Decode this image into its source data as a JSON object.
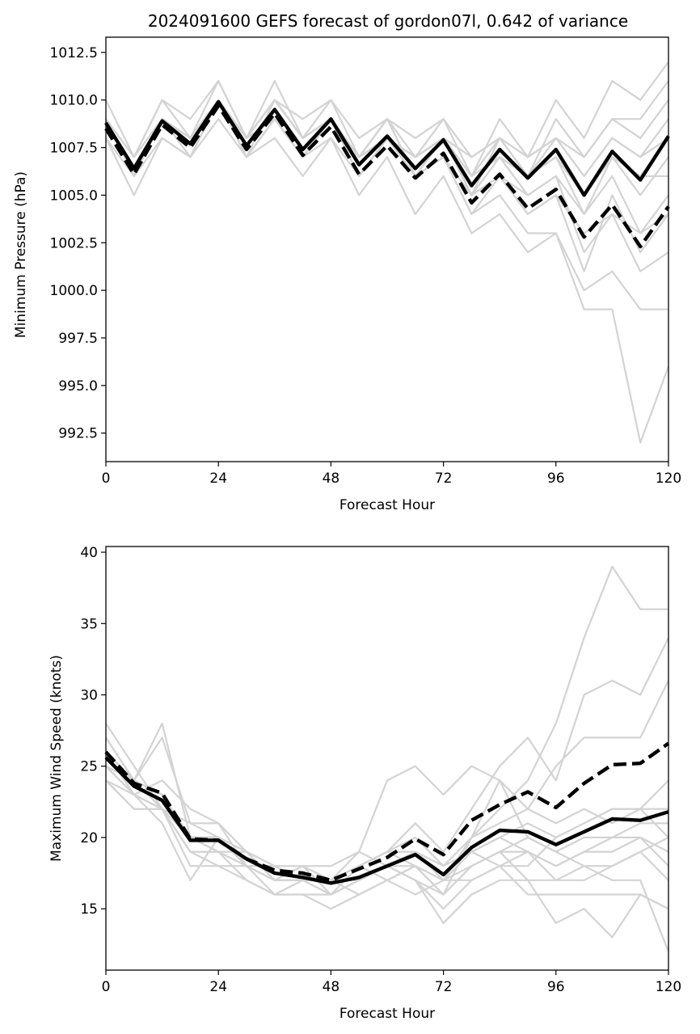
{
  "chart_data": [
    {
      "type": "line",
      "title": "2024091600 GEFS forecast of gordon07l, 0.642 of variance",
      "xlabel": "Forecast Hour",
      "ylabel": "Minimum Pressure (hPa)",
      "xlim": [
        0,
        120
      ],
      "ylim": [
        991,
        1013.3
      ],
      "xticks": [
        0,
        24,
        48,
        72,
        96,
        120
      ],
      "yticks": [
        992.5,
        995.0,
        997.5,
        1000.0,
        1002.5,
        1005.0,
        1007.5,
        1010.0,
        1012.5
      ],
      "ytick_labels": [
        "992.5",
        "995.0",
        "997.5",
        "1000.0",
        "1002.5",
        "1005.0",
        "1007.5",
        "1010.0",
        "1012.5"
      ],
      "grid": false,
      "x": [
        0,
        6,
        12,
        18,
        24,
        30,
        36,
        42,
        48,
        54,
        60,
        66,
        72,
        78,
        84,
        90,
        96,
        102,
        108,
        114,
        120
      ],
      "colors": {
        "members": "#d3d3d3",
        "mean": "#000000"
      },
      "members": [
        [
          1009,
          1006,
          1009,
          1008,
          1010,
          1007,
          1010,
          1008,
          1009,
          1007,
          1008,
          1007,
          1008,
          1006,
          1007,
          1006,
          1007,
          1005,
          1007,
          1006,
          1008
        ],
        [
          1010,
          1007,
          1010,
          1009,
          1011,
          1008,
          1011,
          1008,
          1010,
          1007,
          1009,
          1006,
          1008,
          1005,
          1006,
          1004,
          1005,
          1003,
          1004,
          1003,
          1004
        ],
        [
          1008,
          1005,
          1008,
          1007,
          1009,
          1007,
          1008,
          1006,
          1008,
          1005,
          1007,
          1004,
          1006,
          1003,
          1004,
          1002,
          1003,
          999,
          999,
          992,
          996
        ],
        [
          1009,
          1006,
          1009,
          1007,
          1010,
          1008,
          1009,
          1007,
          1009,
          1006,
          1008,
          1006,
          1007,
          1004,
          1005,
          1003,
          1003,
          1000,
          1001,
          999,
          999
        ],
        [
          1009,
          1006,
          1009,
          1008,
          1010,
          1008,
          1010,
          1008,
          1009,
          1007,
          1008,
          1007,
          1008,
          1006,
          1007,
          1005,
          1006,
          1004,
          1006,
          1003,
          1005
        ],
        [
          1009,
          1007,
          1010,
          1008,
          1011,
          1008,
          1010,
          1009,
          1010,
          1008,
          1009,
          1008,
          1009,
          1007,
          1008,
          1007,
          1008,
          1006,
          1008,
          1007,
          1008
        ],
        [
          1009,
          1007,
          1009,
          1008,
          1010,
          1008,
          1010,
          1008,
          1009,
          1007,
          1009,
          1007,
          1008,
          1007,
          1008,
          1007,
          1008,
          1007,
          1009,
          1008,
          1010
        ],
        [
          1009,
          1006,
          1009,
          1008,
          1010,
          1008,
          1010,
          1008,
          1009,
          1007,
          1009,
          1007,
          1009,
          1006,
          1009,
          1007,
          1010,
          1008,
          1011,
          1010,
          1012
        ],
        [
          1009,
          1006,
          1009,
          1007,
          1010,
          1007,
          1009,
          1007,
          1009,
          1006,
          1008,
          1007,
          1008,
          1005,
          1008,
          1006,
          1009,
          1007,
          1009,
          1009,
          1011
        ],
        [
          1009,
          1006,
          1009,
          1008,
          1010,
          1008,
          1010,
          1008,
          1009,
          1007,
          1009,
          1006,
          1008,
          1005,
          1007,
          1006,
          1007,
          1004,
          1007,
          1005,
          1007
        ],
        [
          1009,
          1006,
          1009,
          1008,
          1010,
          1008,
          1009,
          1007,
          1009,
          1006,
          1008,
          1006,
          1007,
          1004,
          1006,
          1005,
          1006,
          1002,
          1004,
          1001,
          1002
        ],
        [
          1008,
          1006,
          1008,
          1007,
          1010,
          1007,
          1009,
          1007,
          1008,
          1006,
          1008,
          1006,
          1007,
          1005,
          1006,
          1004,
          1005,
          1001,
          1005,
          1002,
          1004
        ],
        [
          1009,
          1006,
          1009,
          1008,
          1010,
          1008,
          1010,
          1008,
          1009,
          1007,
          1008,
          1007,
          1008,
          1006,
          1008,
          1006,
          1008,
          1006,
          1008,
          1007,
          1009
        ],
        [
          1009,
          1006,
          1009,
          1008,
          1010,
          1008,
          1010,
          1008,
          1009,
          1007,
          1008,
          1007,
          1008,
          1006,
          1007,
          1006,
          1007,
          1005,
          1007,
          1006,
          1006
        ]
      ],
      "series": [
        {
          "style": "solid",
          "values": [
            1008.8,
            1006.4,
            1008.9,
            1007.7,
            1009.9,
            1007.6,
            1009.5,
            1007.4,
            1009.0,
            1006.6,
            1008.1,
            1006.4,
            1007.9,
            1005.5,
            1007.4,
            1005.9,
            1007.4,
            1005.0,
            1007.3,
            1005.8,
            1008.1
          ]
        },
        {
          "style": "dashed",
          "values": [
            1008.5,
            1006.1,
            1008.7,
            1007.5,
            1009.7,
            1007.4,
            1009.3,
            1007.1,
            1008.6,
            1006.1,
            1007.6,
            1005.9,
            1007.2,
            1004.6,
            1006.1,
            1004.3,
            1005.3,
            1002.8,
            1004.5,
            1002.3,
            1004.4
          ]
        }
      ]
    },
    {
      "type": "line",
      "title": "",
      "xlabel": "Forecast Hour",
      "ylabel": "Maximum Wind Speed (knots)",
      "xlim": [
        0,
        120
      ],
      "ylim": [
        10.7,
        40.4
      ],
      "xticks": [
        0,
        24,
        48,
        72,
        96,
        120
      ],
      "yticks": [
        15,
        20,
        25,
        30,
        35,
        40
      ],
      "ytick_labels": [
        "15",
        "20",
        "25",
        "30",
        "35",
        "40"
      ],
      "grid": false,
      "x": [
        0,
        6,
        12,
        18,
        24,
        30,
        36,
        42,
        48,
        54,
        60,
        66,
        72,
        78,
        84,
        90,
        96,
        102,
        108,
        114,
        120
      ],
      "colors": {
        "members": "#d3d3d3",
        "mean": "#000000"
      },
      "members": [
        [
          28,
          25,
          22,
          18,
          18,
          17,
          16,
          16,
          15,
          16,
          17,
          18,
          16,
          20,
          22,
          24,
          28,
          34,
          39,
          36,
          36
        ],
        [
          27,
          24,
          23,
          20,
          20,
          19,
          18,
          17,
          17,
          18,
          19,
          21,
          19,
          22,
          25,
          27,
          24,
          30,
          31,
          30,
          34
        ],
        [
          26,
          24,
          27,
          21,
          21,
          18,
          17,
          17,
          16,
          17,
          18,
          19,
          17,
          20,
          24,
          22,
          25,
          27,
          27,
          27,
          31
        ],
        [
          26,
          23,
          22,
          19,
          19,
          18,
          18,
          17,
          17,
          19,
          24,
          25,
          23,
          25,
          24,
          20,
          19,
          18,
          17,
          17,
          12
        ],
        [
          25,
          23,
          21,
          17,
          20,
          19,
          18,
          18,
          16,
          18,
          19,
          20,
          18,
          19,
          18,
          16,
          16,
          16,
          16,
          16,
          15
        ],
        [
          25,
          24,
          28,
          20,
          19,
          18,
          17,
          17,
          17,
          16,
          17,
          18,
          17,
          17,
          18,
          18,
          20,
          21,
          22,
          22,
          22
        ],
        [
          24,
          23,
          24,
          22,
          21,
          19,
          17,
          18,
          17,
          18,
          19,
          18,
          16,
          18,
          19,
          17,
          14,
          15,
          13,
          16,
          15
        ],
        [
          25,
          24,
          22,
          19,
          18,
          18,
          17,
          17,
          16,
          17,
          18,
          17,
          14,
          16,
          17,
          17,
          17,
          17,
          18,
          19,
          20
        ],
        [
          27,
          24,
          23,
          20,
          20,
          19,
          17,
          18,
          18,
          19,
          18,
          17,
          16,
          18,
          19,
          20,
          19,
          20,
          20,
          21,
          21
        ],
        [
          26,
          23,
          22,
          21,
          20,
          18,
          16,
          17,
          17,
          18,
          17,
          18,
          17,
          19,
          20,
          21,
          20,
          21,
          22,
          22,
          24
        ],
        [
          24,
          22,
          22,
          19,
          19,
          17,
          16,
          16,
          16,
          17,
          18,
          17,
          15,
          17,
          18,
          19,
          17,
          18,
          18,
          19,
          17
        ],
        [
          25,
          23,
          22,
          20,
          19,
          19,
          17,
          17,
          17,
          18,
          19,
          19,
          18,
          20,
          21,
          22,
          21,
          22,
          21,
          22,
          20
        ],
        [
          26,
          24,
          23,
          20,
          20,
          18,
          17,
          17,
          17,
          18,
          17,
          16,
          17,
          18,
          19,
          19,
          18,
          19,
          20,
          20,
          18
        ],
        [
          24,
          22,
          22,
          20,
          20,
          18,
          18,
          17,
          17,
          17,
          18,
          18,
          17,
          19,
          20,
          19,
          18,
          19,
          19,
          20,
          19
        ]
      ],
      "series": [
        {
          "style": "solid",
          "values": [
            25.6,
            23.6,
            22.6,
            19.8,
            19.8,
            18.5,
            17.5,
            17.2,
            16.8,
            17.2,
            18.0,
            18.8,
            17.4,
            19.3,
            20.5,
            20.4,
            19.5,
            20.4,
            21.3,
            21.2,
            21.8
          ]
        },
        {
          "style": "dashed",
          "values": [
            26.0,
            23.8,
            23.1,
            19.9,
            19.8,
            18.5,
            17.7,
            17.5,
            17.0,
            17.8,
            18.6,
            19.9,
            18.8,
            21.2,
            22.3,
            23.2,
            22.1,
            23.8,
            25.1,
            25.2,
            26.6
          ]
        }
      ]
    }
  ]
}
